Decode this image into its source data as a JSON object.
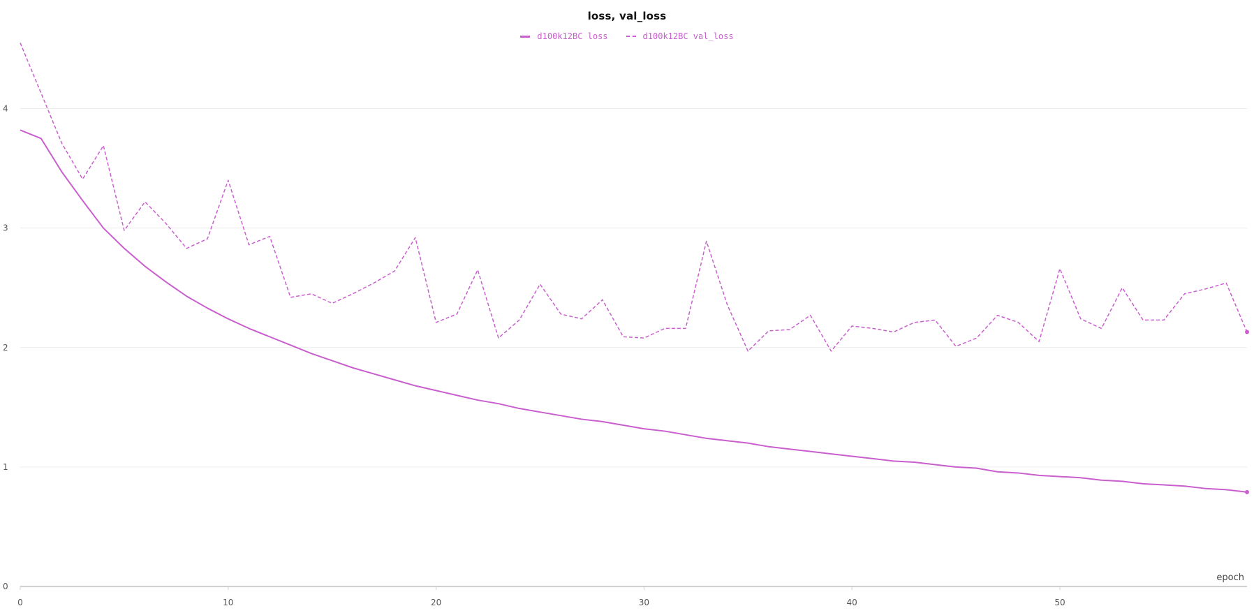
{
  "colors": {
    "series": "#c95fce",
    "grid": "#ececec",
    "axis": "#cfcfcf",
    "tick_text": "#555555"
  },
  "chart_data": {
    "type": "line",
    "title": "loss, val_loss",
    "xlabel": "epoch",
    "ylabel": "",
    "xlim": [
      0,
      59
    ],
    "ylim": [
      0,
      4.5
    ],
    "x_ticks": [
      0,
      10,
      20,
      30,
      40,
      50
    ],
    "y_ticks": [
      0,
      1,
      2,
      3,
      4
    ],
    "grid": true,
    "legend_position": "top-center",
    "x": [
      0,
      1,
      2,
      3,
      4,
      5,
      6,
      7,
      8,
      9,
      10,
      11,
      12,
      13,
      14,
      15,
      16,
      17,
      18,
      19,
      20,
      21,
      22,
      23,
      24,
      25,
      26,
      27,
      28,
      29,
      30,
      31,
      32,
      33,
      34,
      35,
      36,
      37,
      38,
      39,
      40,
      41,
      42,
      43,
      44,
      45,
      46,
      47,
      48,
      49,
      50,
      51,
      52,
      53,
      54,
      55,
      56,
      57,
      58,
      59
    ],
    "series": [
      {
        "name": "d100k12BC loss",
        "style": "solid",
        "values": [
          3.82,
          3.75,
          3.47,
          3.23,
          3.0,
          2.83,
          2.68,
          2.55,
          2.43,
          2.33,
          2.24,
          2.16,
          2.09,
          2.02,
          1.95,
          1.89,
          1.83,
          1.78,
          1.73,
          1.68,
          1.64,
          1.6,
          1.56,
          1.53,
          1.49,
          1.46,
          1.43,
          1.4,
          1.38,
          1.35,
          1.32,
          1.3,
          1.27,
          1.24,
          1.22,
          1.2,
          1.17,
          1.15,
          1.13,
          1.11,
          1.09,
          1.07,
          1.05,
          1.04,
          1.02,
          1.0,
          0.99,
          0.96,
          0.95,
          0.93,
          0.92,
          0.91,
          0.89,
          0.88,
          0.86,
          0.85,
          0.84,
          0.82,
          0.81,
          0.79
        ]
      },
      {
        "name": "d100k12BC val_loss",
        "style": "dashed",
        "values": [
          4.55,
          4.13,
          3.71,
          3.41,
          3.69,
          2.98,
          3.22,
          3.04,
          2.83,
          2.91,
          3.4,
          2.86,
          2.93,
          2.42,
          2.45,
          2.37,
          2.45,
          2.54,
          2.64,
          2.92,
          2.21,
          2.28,
          2.65,
          2.08,
          2.23,
          2.53,
          2.28,
          2.24,
          2.4,
          2.09,
          2.08,
          2.16,
          2.16,
          2.89,
          2.36,
          1.97,
          2.14,
          2.15,
          2.27,
          1.97,
          2.18,
          2.16,
          2.13,
          2.21,
          2.23,
          2.01,
          2.08,
          2.27,
          2.21,
          2.05,
          2.66,
          2.24,
          2.16,
          2.5,
          2.23,
          2.23,
          2.45,
          2.49,
          2.54,
          2.13
        ]
      }
    ]
  }
}
